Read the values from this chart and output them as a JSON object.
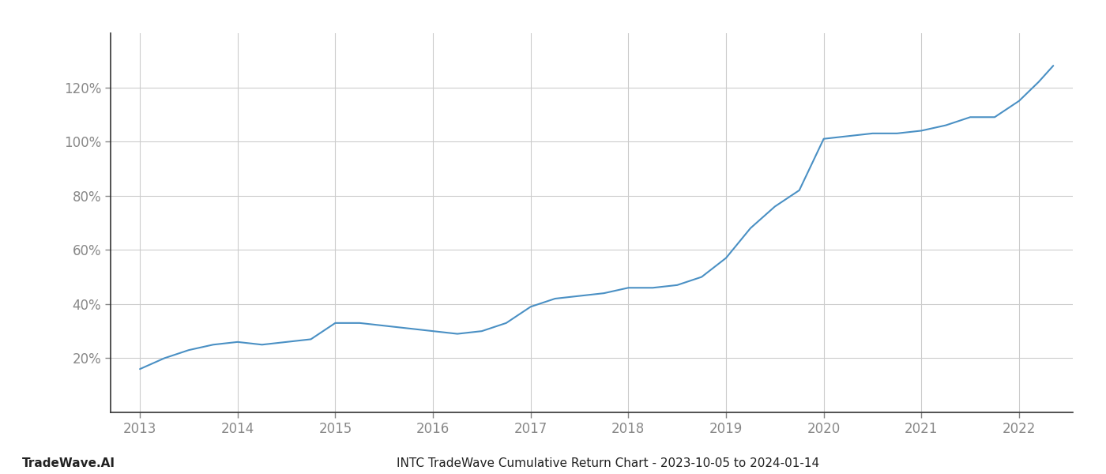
{
  "title": "INTC TradeWave Cumulative Return Chart - 2023-10-05 to 2024-01-14",
  "watermark": "TradeWave.AI",
  "line_color": "#4a90c4",
  "background_color": "#ffffff",
  "grid_color": "#cccccc",
  "x_years": [
    2013,
    2014,
    2015,
    2016,
    2017,
    2018,
    2019,
    2020,
    2021,
    2022
  ],
  "data_x": [
    2013.0,
    2013.25,
    2013.5,
    2013.75,
    2014.0,
    2014.25,
    2014.5,
    2014.75,
    2015.0,
    2015.25,
    2015.5,
    2015.75,
    2016.0,
    2016.25,
    2016.5,
    2016.75,
    2017.0,
    2017.25,
    2017.5,
    2017.75,
    2018.0,
    2018.25,
    2018.5,
    2018.75,
    2019.0,
    2019.25,
    2019.5,
    2019.75,
    2020.0,
    2020.25,
    2020.5,
    2020.75,
    2021.0,
    2021.25,
    2021.5,
    2021.75,
    2022.0,
    2022.2,
    2022.35
  ],
  "data_y": [
    16,
    20,
    23,
    25,
    26,
    25,
    26,
    27,
    33,
    33,
    32,
    31,
    30,
    29,
    30,
    33,
    39,
    42,
    43,
    44,
    46,
    46,
    47,
    50,
    57,
    68,
    76,
    82,
    101,
    102,
    103,
    103,
    104,
    106,
    109,
    109,
    115,
    122,
    128
  ],
  "ylim": [
    0,
    140
  ],
  "yticks": [
    20,
    40,
    60,
    80,
    100,
    120
  ],
  "xlim": [
    2012.7,
    2022.55
  ],
  "title_fontsize": 11,
  "watermark_fontsize": 11,
  "tick_fontsize": 12,
  "line_width": 1.5,
  "axis_color": "#333333",
  "tick_color": "#888888",
  "title_color": "#222222",
  "watermark_color": "#222222"
}
